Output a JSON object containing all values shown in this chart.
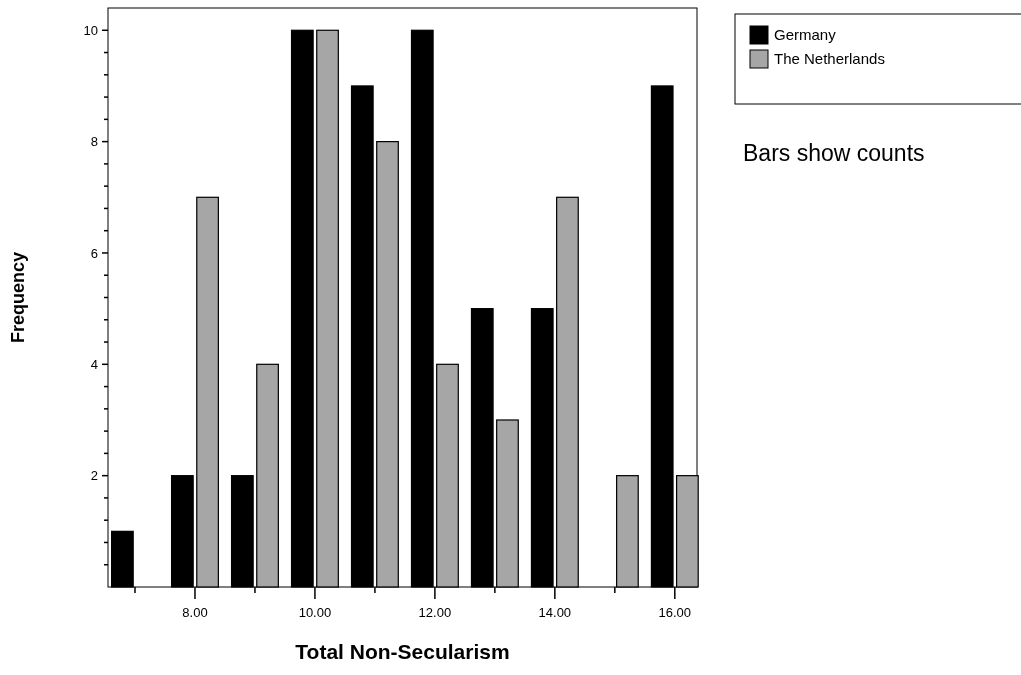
{
  "chart_data": {
    "type": "bar",
    "xlabel": "Total Non-Secularism",
    "ylabel": "Frequency",
    "x": [
      7,
      8,
      9,
      10,
      11,
      12,
      13,
      14,
      15,
      16
    ],
    "series": [
      {
        "name": "Germany",
        "color": "#000000",
        "values": [
          1,
          2,
          2,
          10,
          9,
          10,
          5,
          5,
          0,
          9
        ]
      },
      {
        "name": "The Netherlands",
        "color": "#a6a6a6",
        "values": [
          0,
          7,
          4,
          10,
          8,
          4,
          3,
          7,
          2,
          2
        ]
      }
    ],
    "xlim": [
      6.55,
      16.37
    ],
    "ylim": [
      0,
      10.4
    ],
    "xticks": [
      {
        "value": 7,
        "label": null
      },
      {
        "value": 8,
        "label": "8.00"
      },
      {
        "value": 9,
        "label": null
      },
      {
        "value": 10,
        "label": "10.00"
      },
      {
        "value": 11,
        "label": null
      },
      {
        "value": 12,
        "label": "12.00"
      },
      {
        "value": 13,
        "label": null
      },
      {
        "value": 14,
        "label": "14.00"
      },
      {
        "value": 15,
        "label": null
      },
      {
        "value": 16,
        "label": "16.00"
      }
    ],
    "yticks": [
      {
        "value": 0.4,
        "label": null
      },
      {
        "value": 0.8,
        "label": null
      },
      {
        "value": 1.2,
        "label": null
      },
      {
        "value": 1.6,
        "label": null
      },
      2,
      {
        "value": 2.4,
        "label": null
      },
      {
        "value": 2.8,
        "label": null
      },
      {
        "value": 3.2,
        "label": null
      },
      {
        "value": 3.6,
        "label": null
      },
      4,
      {
        "value": 4.4,
        "label": null
      },
      {
        "value": 4.8,
        "label": null
      },
      {
        "value": 5.2,
        "label": null
      },
      {
        "value": 5.6,
        "label": null
      },
      6,
      {
        "value": 6.4,
        "label": null
      },
      {
        "value": 6.8,
        "label": null
      },
      {
        "value": 7.2,
        "label": null
      },
      {
        "value": 7.6,
        "label": null
      },
      8,
      {
        "value": 8.4,
        "label": null
      },
      {
        "value": 8.8,
        "label": null
      },
      {
        "value": 9.2,
        "label": null
      },
      {
        "value": 9.6,
        "label": null
      },
      10
    ],
    "legend": "right",
    "grid": false,
    "annotations": [
      "Bars show counts"
    ]
  }
}
